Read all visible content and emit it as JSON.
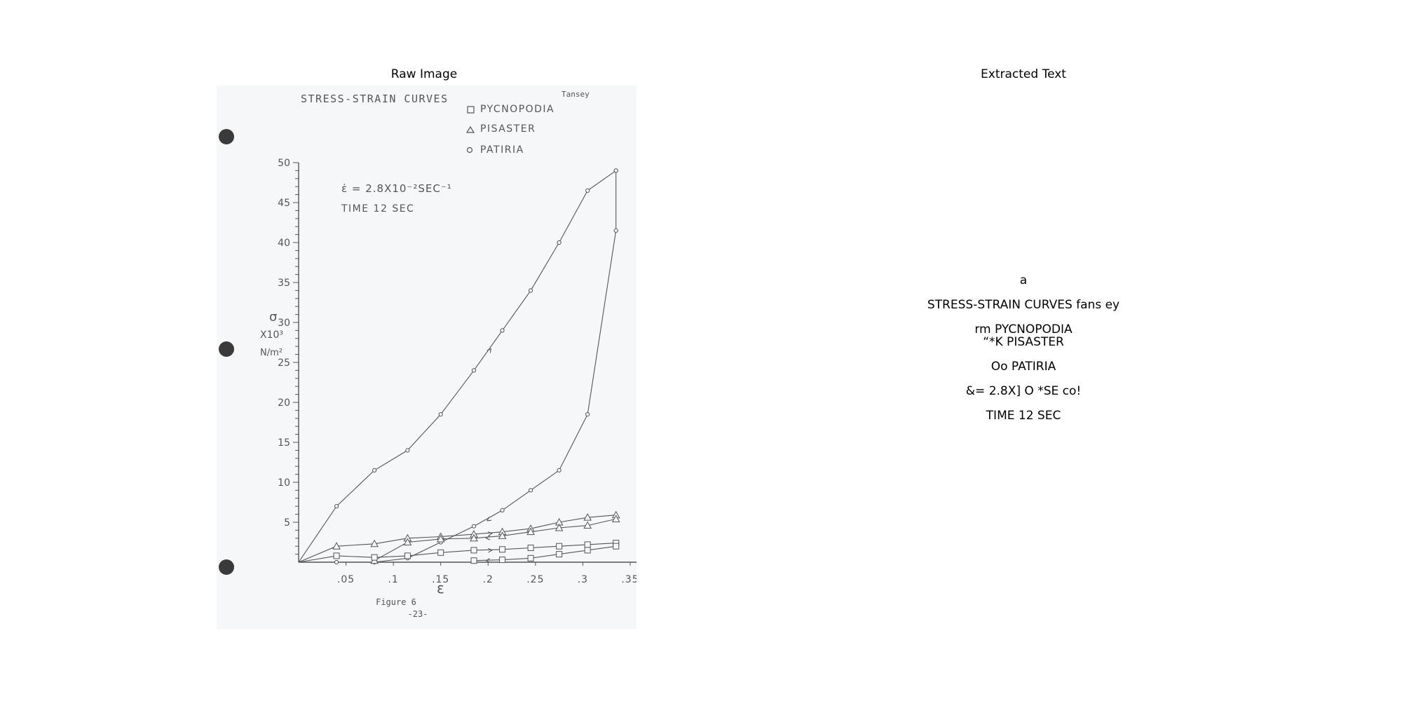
{
  "panels": {
    "raw_title": "Raw Image",
    "text_title": "Extracted Text"
  },
  "document": {
    "title": "STRESS-STRAIN CURVES",
    "author": "Tansey",
    "legend": [
      {
        "symbol": "square",
        "label": "PYCNOPODIA"
      },
      {
        "symbol": "triangle",
        "label": "PISASTER"
      },
      {
        "symbol": "circle",
        "label": "PATIRIA"
      }
    ],
    "rate_label": "ε̇ = 2.8X10⁻²SEC⁻¹",
    "time_label": "TIME  12 SEC",
    "y_label": [
      "σ",
      "X10³",
      "N/m²"
    ],
    "x_label": "ε",
    "caption": "Figure 6",
    "page_number": "-23-"
  },
  "chart_data": {
    "type": "line",
    "title": "STRESS-STRAIN CURVES",
    "xlabel": "ε",
    "ylabel": "σ X10³ N/m²",
    "xlim": [
      0,
      0.37
    ],
    "ylim": [
      0,
      50
    ],
    "xticks": [
      ".05",
      ".1",
      ".15",
      ".2",
      ".25",
      ".3",
      ".35"
    ],
    "yticks": [
      "5",
      "10",
      "15",
      "20",
      "25",
      "30",
      "35",
      "40",
      "45",
      "50"
    ],
    "series": [
      {
        "name": "PATIRIA",
        "marker": "circle",
        "branch": "loading",
        "x": [
          0,
          0.04,
          0.08,
          0.115,
          0.15,
          0.185,
          0.215,
          0.245,
          0.275,
          0.305,
          0.335
        ],
        "y": [
          0,
          7,
          11.5,
          14,
          18.5,
          24,
          29,
          34,
          40,
          46.5,
          49
        ]
      },
      {
        "name": "PATIRIA",
        "marker": "circle",
        "branch": "unloading",
        "x": [
          0.335,
          0.335,
          0.305,
          0.275,
          0.245,
          0.215,
          0.185,
          0.15,
          0.115,
          0.08,
          0.04
        ],
        "y": [
          49,
          41.5,
          18.5,
          11.5,
          9,
          6.5,
          4.5,
          2.5,
          0.5,
          0,
          0
        ]
      },
      {
        "name": "PISASTER",
        "marker": "triangle",
        "branch": "loading",
        "x": [
          0,
          0.04,
          0.08,
          0.115,
          0.15,
          0.185,
          0.215,
          0.245,
          0.275,
          0.305,
          0.335
        ],
        "y": [
          0,
          2,
          2.3,
          3,
          3.2,
          3.5,
          3.8,
          4.2,
          5,
          5.6,
          5.9
        ]
      },
      {
        "name": "PISASTER",
        "marker": "triangle",
        "branch": "unloading",
        "x": [
          0.335,
          0.305,
          0.275,
          0.245,
          0.215,
          0.185,
          0.15,
          0.115,
          0.08
        ],
        "y": [
          5.4,
          4.6,
          4.3,
          3.8,
          3.3,
          3.0,
          2.9,
          2.5,
          0.2
        ]
      },
      {
        "name": "PYCNOPODIA",
        "marker": "square",
        "branch": "loading",
        "x": [
          0,
          0.04,
          0.08,
          0.115,
          0.15,
          0.185,
          0.215,
          0.245,
          0.275,
          0.305,
          0.335
        ],
        "y": [
          0,
          0.8,
          0.6,
          0.8,
          1.2,
          1.5,
          1.6,
          1.8,
          2.0,
          2.2,
          2.4
        ]
      },
      {
        "name": "PYCNOPODIA",
        "marker": "square",
        "branch": "unloading",
        "x": [
          0.335,
          0.305,
          0.275,
          0.245,
          0.215,
          0.185
        ],
        "y": [
          2.0,
          1.5,
          1.0,
          0.5,
          0.3,
          0.2
        ]
      }
    ]
  },
  "extracted_text": [
    "a",
    "STRESS-STRAIN CURVES fans ey",
    "rm PYCNOPODIA",
    "“*K PISASTER",
    "Oo PATIRIA",
    "&= 2.8X] O *SE co!",
    "TIME 12 SEC"
  ]
}
